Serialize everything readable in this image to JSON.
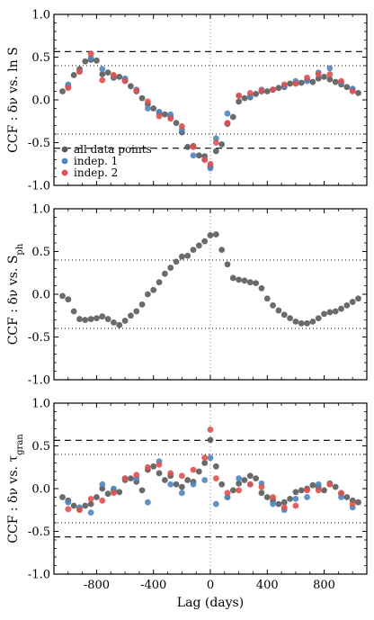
{
  "colors": {
    "all": "#5a5a5a",
    "indep1": "#4f86c0",
    "indep2": "#e0514f",
    "frame": "#000000"
  },
  "chart_data": [
    {
      "type": "scatter",
      "ylabel": "CCF : δν vs. ln S",
      "ylim": [
        -1.0,
        1.0
      ],
      "xlim": [
        -1100,
        1100
      ],
      "yticks": [
        "1.0",
        "0.5",
        "0.0",
        "-0.5",
        "-1.0"
      ],
      "hlines_dashed": [
        0.565,
        -0.565
      ],
      "hlines_dotted": [
        0.4,
        -0.4
      ],
      "vline_dotted": 0,
      "legend": {
        "position": "lower-left",
        "entries": [
          "all data points",
          "indep. 1",
          "indep. 2"
        ]
      },
      "series": [
        {
          "name": "all data points",
          "color": "all",
          "x": [
            -1040,
            -1000,
            -960,
            -920,
            -880,
            -840,
            -800,
            -760,
            -720,
            -680,
            -640,
            -600,
            -560,
            -520,
            -480,
            -440,
            -400,
            -360,
            -320,
            -280,
            -240,
            -200,
            -160,
            -120,
            -80,
            -40,
            0,
            40,
            80,
            120,
            160,
            200,
            240,
            280,
            320,
            360,
            400,
            440,
            480,
            520,
            560,
            600,
            640,
            680,
            720,
            760,
            800,
            840,
            880,
            920,
            960,
            1000,
            1040
          ],
          "y": [
            0.1,
            0.16,
            0.29,
            0.36,
            0.45,
            0.47,
            0.46,
            0.3,
            0.32,
            0.26,
            0.27,
            0.23,
            0.16,
            0.1,
            0.02,
            -0.05,
            -0.1,
            -0.15,
            -0.17,
            -0.2,
            -0.27,
            -0.38,
            -0.55,
            -0.54,
            -0.65,
            -0.66,
            -0.78,
            -0.6,
            -0.52,
            -0.28,
            -0.2,
            -0.02,
            0.02,
            0.03,
            0.07,
            0.1,
            0.1,
            0.12,
            0.14,
            0.15,
            0.19,
            0.2,
            0.2,
            0.23,
            0.21,
            0.25,
            0.27,
            0.24,
            0.21,
            0.18,
            0.15,
            0.12,
            0.08
          ]
        },
        {
          "name": "indep. 1",
          "color": "indep1",
          "x": [
            -1000,
            -920,
            -840,
            -760,
            -680,
            -600,
            -520,
            -440,
            -360,
            -280,
            -200,
            -120,
            -40,
            0,
            40,
            120,
            200,
            280,
            360,
            440,
            520,
            600,
            680,
            760,
            840,
            920,
            1000
          ],
          "y": [
            0.18,
            0.33,
            0.49,
            0.36,
            0.28,
            0.25,
            0.12,
            -0.1,
            -0.14,
            -0.17,
            -0.35,
            -0.65,
            -0.7,
            -0.8,
            -0.45,
            -0.16,
            0.05,
            0.04,
            0.12,
            0.12,
            0.16,
            0.22,
            0.22,
            0.32,
            0.37,
            0.2,
            0.13
          ]
        },
        {
          "name": "indep. 2",
          "color": "indep2",
          "x": [
            -1000,
            -920,
            -840,
            -760,
            -680,
            -600,
            -520,
            -440,
            -360,
            -280,
            -200,
            -120,
            -40,
            0,
            40,
            120,
            200,
            280,
            360,
            440,
            520,
            600,
            680,
            760,
            840,
            920,
            1000
          ],
          "y": [
            0.14,
            0.33,
            0.54,
            0.23,
            0.29,
            0.22,
            0.11,
            -0.02,
            -0.19,
            -0.22,
            -0.31,
            -0.55,
            -0.7,
            -0.75,
            -0.5,
            -0.27,
            0.05,
            0.08,
            0.11,
            0.12,
            0.18,
            0.19,
            0.26,
            0.3,
            0.3,
            0.22,
            0.1
          ]
        }
      ]
    },
    {
      "type": "scatter",
      "ylabel": "CCF : δν vs. S",
      "ylabel_sub": "ph",
      "ylim": [
        -1.0,
        1.0
      ],
      "xlim": [
        -1100,
        1100
      ],
      "yticks": [
        "1.0",
        "0.5",
        "0.0",
        "-0.5",
        "-1.0"
      ],
      "hlines_dotted": [
        0.4,
        -0.4
      ],
      "vline_dotted": 0,
      "series": [
        {
          "name": "all data points",
          "color": "all",
          "x": [
            -1040,
            -1000,
            -960,
            -920,
            -880,
            -840,
            -800,
            -760,
            -720,
            -680,
            -640,
            -600,
            -560,
            -520,
            -480,
            -440,
            -400,
            -360,
            -320,
            -280,
            -240,
            -200,
            -160,
            -120,
            -80,
            -40,
            0,
            40,
            80,
            120,
            160,
            200,
            240,
            280,
            320,
            360,
            400,
            440,
            480,
            520,
            560,
            600,
            640,
            680,
            720,
            760,
            800,
            840,
            880,
            920,
            960,
            1000,
            1040
          ],
          "y": [
            -0.02,
            -0.06,
            -0.2,
            -0.29,
            -0.3,
            -0.29,
            -0.28,
            -0.26,
            -0.29,
            -0.33,
            -0.36,
            -0.31,
            -0.25,
            -0.2,
            -0.12,
            0.0,
            0.05,
            0.14,
            0.24,
            0.31,
            0.38,
            0.44,
            0.45,
            0.52,
            0.57,
            0.62,
            0.69,
            0.7,
            0.52,
            0.35,
            0.19,
            0.17,
            0.16,
            0.14,
            0.13,
            0.07,
            -0.05,
            -0.13,
            -0.19,
            -0.24,
            -0.28,
            -0.32,
            -0.34,
            -0.34,
            -0.32,
            -0.28,
            -0.23,
            -0.21,
            -0.2,
            -0.17,
            -0.13,
            -0.09,
            -0.05
          ]
        }
      ]
    },
    {
      "type": "scatter",
      "ylabel": "CCF : δν vs. τ",
      "ylabel_sub": "gran",
      "xlabel": "Lag (days)",
      "ylim": [
        -1.0,
        1.0
      ],
      "xlim": [
        -1100,
        1100
      ],
      "yticks": [
        "1.0",
        "0.5",
        "0.0",
        "-0.5",
        "-1.0"
      ],
      "xticks": [
        "-800",
        "-400",
        "0",
        "400",
        "800"
      ],
      "xtick_values": [
        -800,
        -400,
        0,
        400,
        800
      ],
      "hlines_dashed": [
        0.565,
        -0.565
      ],
      "hlines_dotted": [
        0.4,
        -0.4
      ],
      "vline_dotted": 0,
      "series": [
        {
          "name": "all data points",
          "color": "all",
          "x": [
            -1040,
            -1000,
            -960,
            -920,
            -880,
            -840,
            -800,
            -760,
            -720,
            -680,
            -640,
            -600,
            -560,
            -520,
            -480,
            -440,
            -400,
            -360,
            -320,
            -280,
            -240,
            -200,
            -160,
            -120,
            -80,
            -40,
            0,
            40,
            80,
            120,
            160,
            200,
            240,
            280,
            320,
            360,
            400,
            440,
            480,
            520,
            560,
            600,
            640,
            680,
            720,
            760,
            800,
            840,
            880,
            920,
            960,
            1000,
            1040
          ],
          "y": [
            -0.1,
            -0.14,
            -0.2,
            -0.24,
            -0.2,
            -0.18,
            -0.1,
            0.0,
            -0.06,
            -0.02,
            -0.04,
            0.1,
            0.12,
            0.08,
            -0.02,
            0.22,
            0.26,
            0.18,
            0.1,
            0.15,
            0.05,
            0.02,
            0.1,
            0.08,
            0.2,
            0.3,
            0.57,
            0.26,
            0.05,
            -0.1,
            -0.02,
            0.06,
            0.1,
            0.15,
            0.12,
            -0.05,
            -0.1,
            -0.14,
            -0.18,
            -0.16,
            -0.12,
            -0.04,
            -0.02,
            0.0,
            0.04,
            0.02,
            -0.02,
            0.06,
            0.02,
            -0.06,
            -0.1,
            -0.14,
            -0.16
          ]
        },
        {
          "name": "indep. 1",
          "color": "indep1",
          "x": [
            -1000,
            -920,
            -840,
            -760,
            -680,
            -600,
            -520,
            -440,
            -360,
            -280,
            -200,
            -120,
            -40,
            0,
            40,
            120,
            200,
            280,
            360,
            440,
            520,
            600,
            680,
            760,
            840,
            920,
            1000
          ],
          "y": [
            -0.16,
            -0.22,
            -0.28,
            0.05,
            0.0,
            0.12,
            0.12,
            -0.16,
            0.32,
            0.05,
            -0.05,
            0.05,
            0.1,
            0.36,
            -0.18,
            -0.1,
            0.12,
            0.05,
            0.06,
            -0.18,
            -0.25,
            -0.12,
            -0.1,
            0.05,
            0.05,
            -0.1,
            -0.22
          ]
        },
        {
          "name": "indep. 2",
          "color": "indep2",
          "x": [
            -1000,
            -920,
            -840,
            -760,
            -680,
            -600,
            -520,
            -440,
            -360,
            -280,
            -200,
            -120,
            -40,
            0,
            40,
            120,
            200,
            280,
            360,
            440,
            520,
            600,
            680,
            760,
            840,
            920,
            1000
          ],
          "y": [
            -0.24,
            -0.25,
            -0.12,
            -0.14,
            -0.05,
            0.12,
            0.16,
            0.25,
            0.28,
            0.18,
            0.15,
            0.22,
            0.36,
            0.69,
            0.12,
            -0.05,
            -0.02,
            0.05,
            0.02,
            -0.1,
            -0.22,
            -0.2,
            -0.02,
            -0.02,
            0.05,
            -0.05,
            -0.18
          ]
        }
      ]
    }
  ]
}
